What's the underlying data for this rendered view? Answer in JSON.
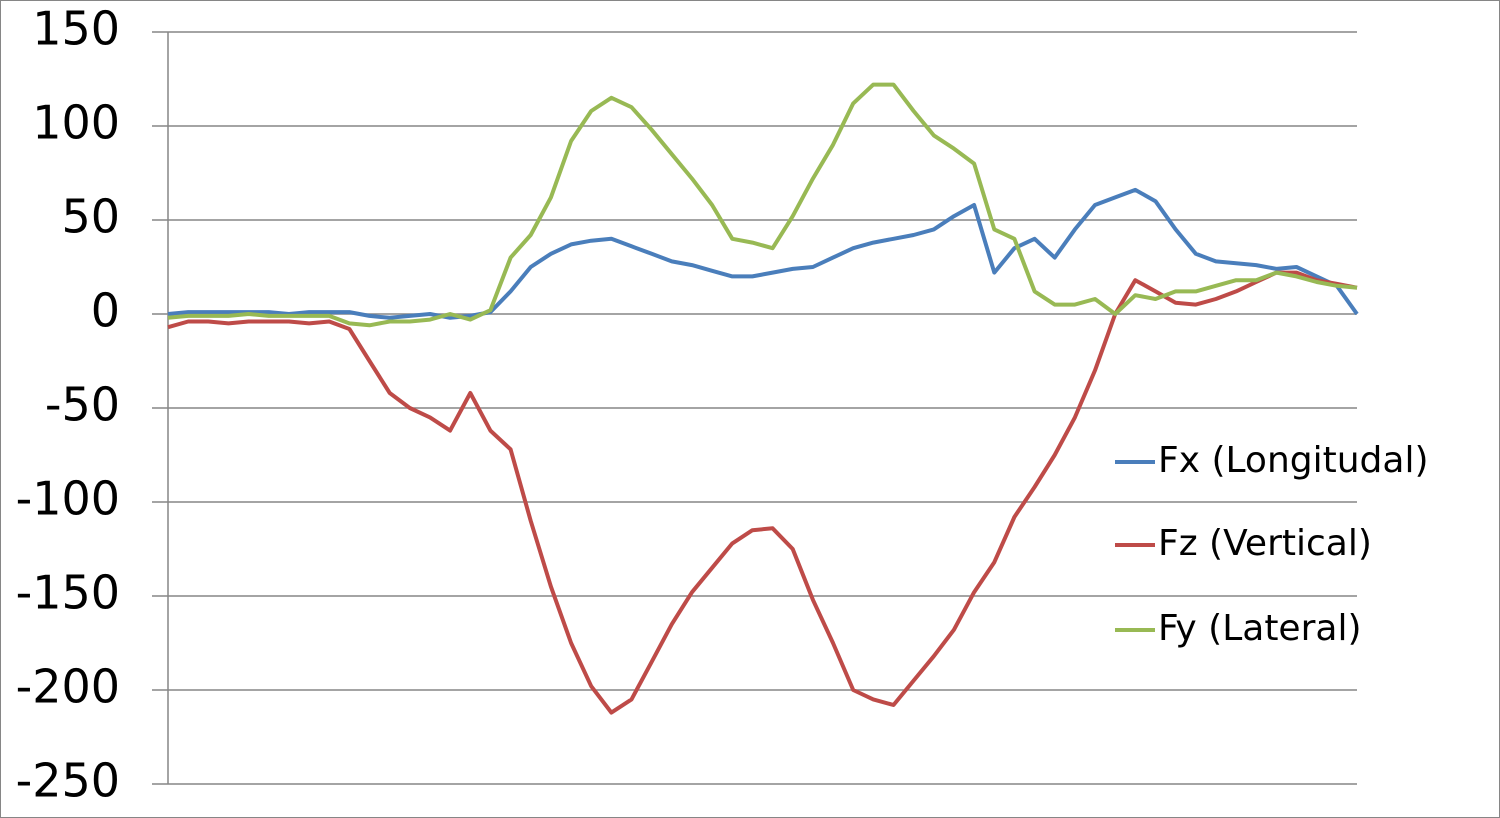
{
  "chart_data": {
    "type": "line",
    "ylim": [
      -250,
      150
    ],
    "yticks": [
      -250,
      -200,
      -150,
      -100,
      -50,
      0,
      50,
      100,
      150
    ],
    "grid": true,
    "legend": "right",
    "series": [
      {
        "name": "Fx (Longitudal)",
        "color": "#4a7ebb",
        "values": [
          0,
          1,
          1,
          1,
          1,
          1,
          0,
          1,
          1,
          1,
          -1,
          -2,
          -1,
          0,
          -2,
          -1,
          1,
          12,
          25,
          32,
          37,
          39,
          40,
          36,
          32,
          28,
          26,
          23,
          20,
          20,
          22,
          24,
          25,
          30,
          35,
          38,
          40,
          42,
          45,
          52,
          58,
          22,
          35,
          40,
          30,
          45,
          58,
          62,
          66,
          60,
          45,
          32,
          28,
          27,
          26,
          24,
          25,
          20,
          15,
          0
        ]
      },
      {
        "name": "Fz (Vertical)",
        "color": "#be4b48",
        "values": [
          -7,
          -4,
          -4,
          -5,
          -4,
          -4,
          -4,
          -5,
          -4,
          -8,
          -25,
          -42,
          -50,
          -55,
          -62,
          -42,
          -62,
          -72,
          -110,
          -145,
          -175,
          -198,
          -212,
          -205,
          -185,
          -165,
          -148,
          -135,
          -122,
          -115,
          -114,
          -125,
          -152,
          -175,
          -200,
          -205,
          -208,
          -195,
          -182,
          -168,
          -148,
          -132,
          -108,
          -92,
          -75,
          -55,
          -30,
          0,
          18,
          12,
          6,
          5,
          8,
          12,
          17,
          22,
          22,
          18,
          16,
          14
        ]
      },
      {
        "name": "Fy (Lateral)",
        "color": "#98b954",
        "values": [
          -2,
          -1,
          -1,
          -1,
          0,
          -1,
          -1,
          -1,
          -1,
          -5,
          -6,
          -4,
          -4,
          -3,
          0,
          -3,
          2,
          30,
          42,
          62,
          92,
          108,
          115,
          110,
          98,
          85,
          72,
          58,
          40,
          38,
          35,
          52,
          72,
          90,
          112,
          122,
          122,
          108,
          95,
          88,
          80,
          45,
          40,
          12,
          5,
          5,
          8,
          0,
          10,
          8,
          12,
          12,
          15,
          18,
          18,
          22,
          20,
          17,
          15,
          14
        ]
      }
    ]
  }
}
